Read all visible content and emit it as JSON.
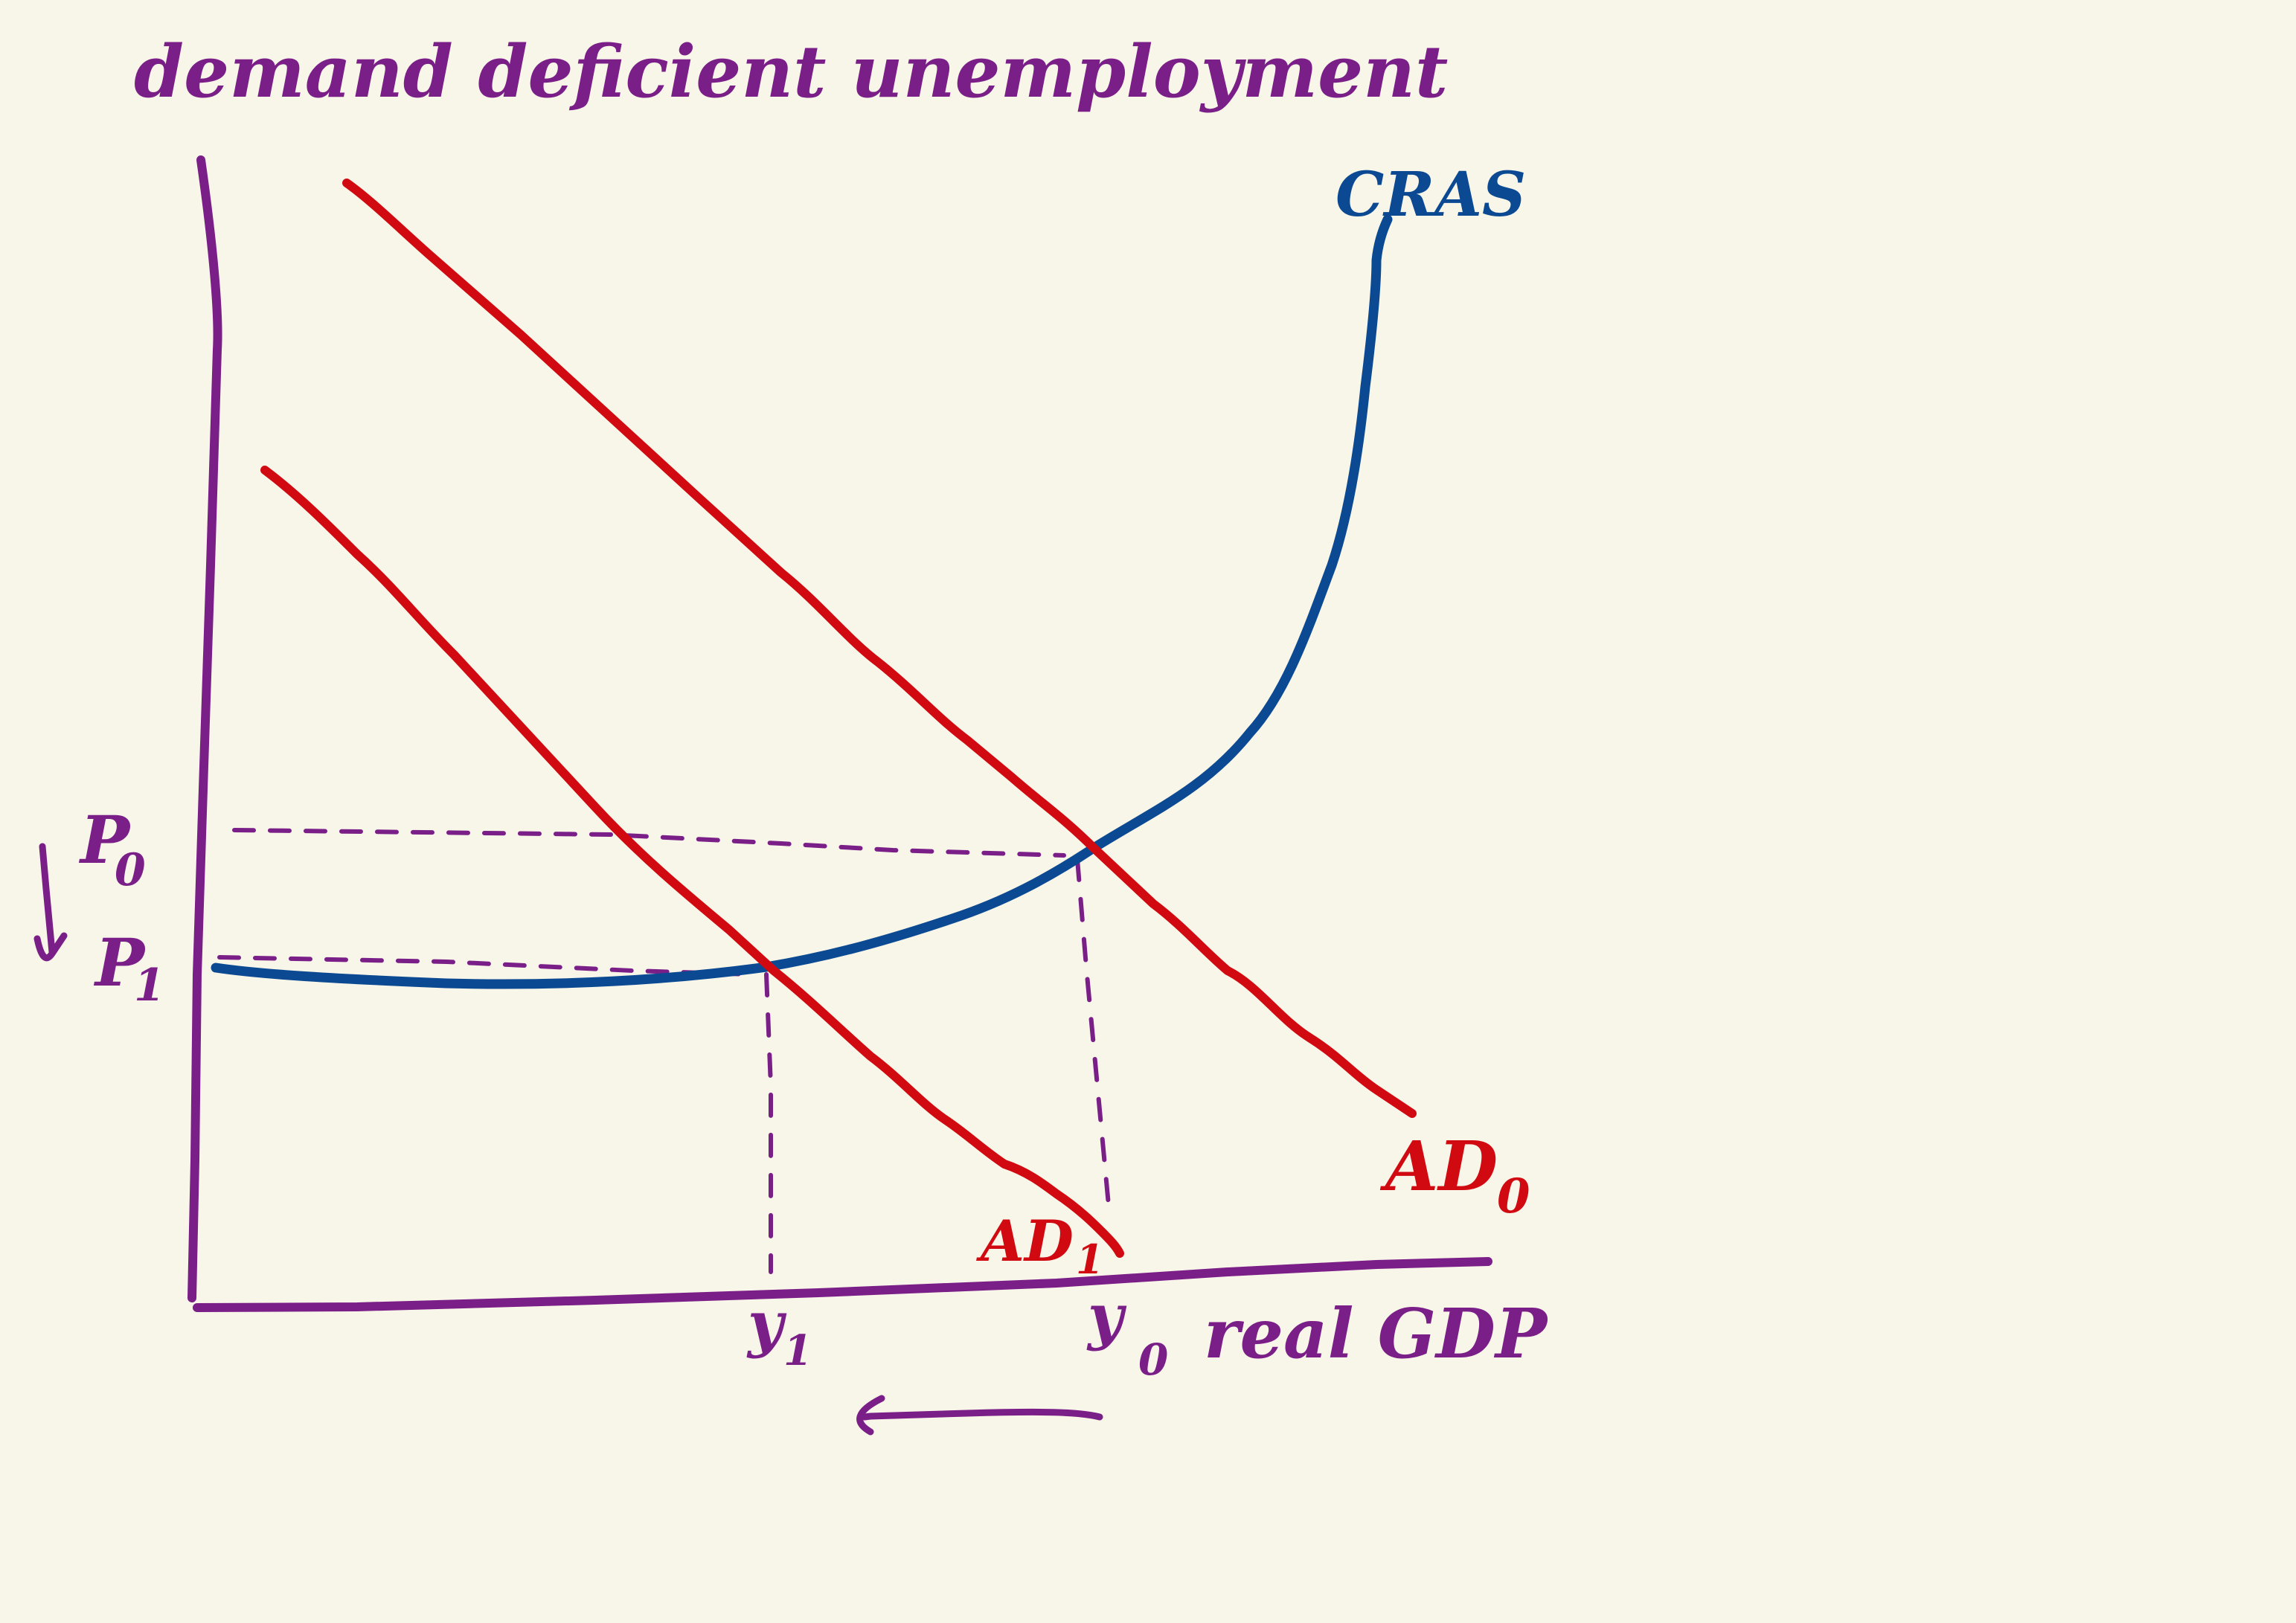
{
  "title": "demand deficient unemployment",
  "curves": {
    "sras_label": "CRAS",
    "ad0_label": "AD",
    "ad0_sub": "0",
    "ad1_label": "AD",
    "ad1_sub": "1"
  },
  "axes": {
    "x_label": "real GDP",
    "p0_label": "P",
    "p0_sub": "0",
    "p1_label": "P",
    "p1_sub": "1",
    "y0_label": "y",
    "y0_sub": "0",
    "y1_label": "y",
    "y1_sub": "1"
  },
  "colors": {
    "background": "#f8f5e9",
    "purple": "#7b1f88",
    "red": "#d10a12",
    "blue": "#0b4a92"
  }
}
